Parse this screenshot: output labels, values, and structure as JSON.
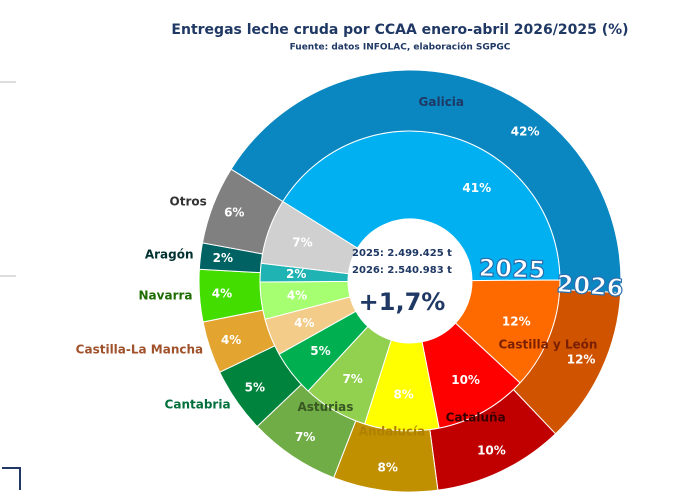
{
  "chart_data": {
    "type": "nested-donut",
    "title": "Entregas leche cruda por CCAA enero-abril 2026/2025 (%)",
    "subtitle": "Fuente: datos INFOLAC, elaboración SGPGC",
    "categories": [
      "Galicia",
      "Castilla y León",
      "Cataluña",
      "Andalucía",
      "Asturias",
      "Cantabria",
      "Castilla-La Mancha",
      "Navarra",
      "Aragón",
      "Otros"
    ],
    "label_colors": [
      "#1f3864",
      "#7a2000",
      "#3a0000",
      "#b08000",
      "#385723",
      "#00703c",
      "#a0522d",
      "#1e6b00",
      "#003030",
      "#333333"
    ],
    "series": [
      {
        "name": "2025",
        "values": [
          41,
          12,
          10,
          8,
          7,
          5,
          4,
          4,
          2,
          7
        ],
        "value_labels": [
          "41%",
          "12%",
          "10%",
          "8%",
          "7%",
          "5%",
          "4%",
          "4%",
          "2%",
          "7%"
        ],
        "colors": [
          "#00b0f0",
          "#ff6a00",
          "#ff0000",
          "#ffff00",
          "#92d050",
          "#00b050",
          "#f3cc8a",
          "#a6ff70",
          "#1fb3b3",
          "#d0d0d0"
        ]
      },
      {
        "name": "2026",
        "values": [
          42,
          12,
          10,
          8,
          7,
          5,
          4,
          4,
          2,
          6
        ],
        "value_labels": [
          "42%",
          "12%",
          "10%",
          "8%",
          "7%",
          "5%",
          "4%",
          "4%",
          "2%",
          "6%"
        ],
        "colors": [
          "#0a87c0",
          "#d05300",
          "#c00000",
          "#c09000",
          "#70ad47",
          "#00843d",
          "#e3a530",
          "#44dd00",
          "#006262",
          "#808080"
        ]
      }
    ],
    "center_lines": [
      "2025: 2.499.425 t",
      "2026: 2.540.983 t"
    ],
    "center_change": "+1,7%"
  }
}
